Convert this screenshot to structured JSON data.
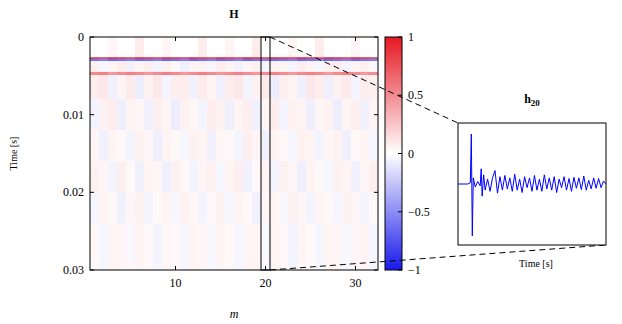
{
  "chart_data": [
    {
      "type": "heatmap",
      "title": "H",
      "x_label": "m",
      "y_label": "Time [s]",
      "x": [
        1,
        2,
        3,
        4,
        5,
        6,
        7,
        8,
        9,
        10,
        11,
        12,
        13,
        14,
        15,
        16,
        17,
        18,
        19,
        20,
        21,
        22,
        23,
        24,
        25,
        26,
        27,
        28,
        29,
        30,
        31,
        32
      ],
      "y_edges": [
        0,
        0.0026,
        0.0028,
        0.0031,
        0.0045,
        0.0049,
        0.008,
        0.012,
        0.016,
        0.02,
        0.024,
        0.03
      ],
      "cells": [
        [
          0,
          0,
          0.04,
          0,
          0,
          0.08,
          0,
          0,
          0.04,
          0,
          0,
          0,
          0.08,
          0,
          0,
          0.04,
          0,
          0,
          0.08,
          0,
          0,
          0,
          0.04,
          0,
          0,
          0.08,
          0,
          0,
          0,
          0.04,
          0,
          0
        ],
        [
          0.85,
          0.8,
          0.9,
          0.85,
          0.8,
          0.9,
          0.85,
          0.8,
          0.9,
          0.85,
          0.8,
          0.9,
          0.85,
          0.8,
          0.9,
          0.85,
          0.8,
          0.9,
          0.85,
          0.8,
          0.9,
          0.85,
          0.8,
          0.9,
          0.85,
          0.8,
          0.9,
          0.85,
          0.8,
          0.9,
          0.85,
          0.8
        ],
        [
          -0.6,
          -0.55,
          -0.65,
          -0.6,
          -0.55,
          -0.65,
          -0.6,
          -0.55,
          -0.65,
          -0.6,
          -0.55,
          -0.65,
          -0.6,
          -0.55,
          -0.65,
          -0.6,
          -0.55,
          -0.65,
          -0.6,
          -0.55,
          -0.65,
          -0.6,
          -0.55,
          -0.65,
          -0.6,
          -0.55,
          -0.65,
          -0.6,
          -0.55,
          -0.65,
          -0.6,
          -0.55
        ],
        [
          0.06,
          -0.04,
          0.05,
          0.08,
          -0.06,
          0.04,
          0.07,
          -0.05,
          0.06,
          0.03,
          -0.07,
          0.05,
          0.06,
          -0.04,
          0.08,
          0.05,
          -0.06,
          0.04,
          0.07,
          -0.05,
          0.06,
          0.04,
          -0.05,
          0.07,
          0.05,
          -0.04,
          0.06,
          0.08,
          -0.05,
          0.04,
          0.06,
          -0.03
        ],
        [
          0.5,
          0.55,
          0.45,
          0.5,
          0.55,
          0.5,
          0.45,
          0.5,
          0.55,
          0.5,
          0.45,
          0.5,
          0.55,
          0.5,
          0.45,
          0.5,
          0.55,
          0.5,
          0.45,
          0.5,
          0.55,
          0.5,
          0.45,
          0.5,
          0.55,
          0.5,
          0.45,
          0.5,
          0.55,
          0.5,
          0.45,
          0.5
        ],
        [
          0.08,
          0.1,
          -0.06,
          0.05,
          0.09,
          -0.08,
          0.06,
          0.1,
          -0.05,
          0.07,
          0.08,
          -0.06,
          0.09,
          0.05,
          -0.07,
          0.08,
          0.1,
          -0.05,
          0.06,
          0.09,
          -0.08,
          0.07,
          0.05,
          -0.06,
          0.1,
          0.08,
          -0.07,
          0.06,
          0.09,
          -0.05,
          0.08,
          0.07
        ],
        [
          -0.05,
          0.06,
          0.08,
          -0.07,
          0.05,
          0.04,
          -0.06,
          0.07,
          0.05,
          -0.08,
          0.06,
          0.04,
          -0.05,
          0.08,
          0.06,
          -0.07,
          0.05,
          0.07,
          -0.06,
          0.04,
          0.08,
          -0.05,
          0.06,
          0.05,
          -0.07,
          0.04,
          0.06,
          -0.08,
          0.05,
          0.07,
          -0.06,
          0.05
        ],
        [
          0.04,
          -0.06,
          0.05,
          0.03,
          -0.05,
          0.06,
          0.04,
          -0.07,
          0.05,
          0.03,
          -0.04,
          0.06,
          0.05,
          -0.06,
          0.04,
          0.03,
          -0.05,
          0.07,
          0.04,
          -0.06,
          0.05,
          0.03,
          -0.04,
          0.06,
          0.05,
          -0.05,
          0.04,
          0.06,
          -0.07,
          0.03,
          0.05,
          -0.04
        ],
        [
          0.06,
          0.04,
          -0.05,
          0.07,
          0.03,
          -0.06,
          0.05,
          0.04,
          -0.07,
          0.06,
          0.03,
          -0.05,
          0.04,
          0.06,
          -0.04,
          0.05,
          0.07,
          -0.06,
          0.03,
          0.05,
          -0.05,
          0.06,
          0.04,
          -0.07,
          0.05,
          0.03,
          -0.04,
          0.06,
          0.05,
          -0.06,
          0.04,
          0.07
        ],
        [
          -0.04,
          0.05,
          0.03,
          -0.06,
          0.04,
          0.06,
          -0.05,
          0.03,
          0.05,
          -0.04,
          0.06,
          0.04,
          -0.05,
          0.03,
          0.06,
          -0.04,
          0.05,
          0.03,
          -0.06,
          0.04,
          0.05,
          -0.03,
          0.06,
          0.04,
          -0.05,
          0.05,
          0.03,
          -0.04,
          0.06,
          0.04,
          -0.05,
          0.03
        ],
        [
          0.03,
          -0.04,
          0.05,
          0.04,
          -0.03,
          0.05,
          0.03,
          -0.05,
          0.04,
          0.03,
          -0.04,
          0.05,
          0.04,
          -0.03,
          0.05,
          0.03,
          -0.04,
          0.04,
          0.05,
          -0.03,
          0.04,
          0.03,
          -0.05,
          0.04,
          0.03,
          -0.04,
          0.05,
          0.04,
          -0.03,
          0.04,
          0.05,
          -0.04
        ]
      ],
      "xlim": [
        0.5,
        32.5
      ],
      "ylim": [
        0,
        0.03
      ],
      "xticks": [
        10,
        20,
        30
      ],
      "yticks": [
        0,
        0.01,
        0.02,
        0.03
      ],
      "colorbar": {
        "range": [
          -1,
          1
        ],
        "ticks": [
          {
            "value": -1,
            "label": "−1"
          },
          {
            "value": -0.5,
            "label": "−0.5"
          },
          0,
          0.5,
          1
        ]
      },
      "selected": 20
    },
    {
      "type": "line",
      "title": "h20",
      "x_label": "Time [s]",
      "x": [
        0,
        0.001,
        0.002,
        0.0025,
        0.0027,
        0.0029,
        0.0031,
        0.0035,
        0.004,
        0.0045,
        0.0047,
        0.0049,
        0.0052,
        0.0055,
        0.006,
        0.0065,
        0.007,
        0.0075,
        0.008,
        0.0085,
        0.009,
        0.0095,
        0.01,
        0.0105,
        0.011,
        0.0115,
        0.012,
        0.0125,
        0.013,
        0.0135,
        0.014,
        0.0145,
        0.015,
        0.0155,
        0.016,
        0.0165,
        0.017,
        0.0175,
        0.018,
        0.0185,
        0.019,
        0.0195,
        0.02,
        0.0205,
        0.021,
        0.0215,
        0.022,
        0.0225,
        0.023,
        0.0235,
        0.024,
        0.0245,
        0.025,
        0.0255,
        0.026,
        0.0265,
        0.027,
        0.0275,
        0.028,
        0.0285,
        0.029,
        0.0295,
        0.03
      ],
      "values": [
        0,
        0,
        0,
        0.02,
        0.82,
        -0.85,
        0.1,
        -0.05,
        0.04,
        -0.03,
        0.25,
        -0.2,
        0.15,
        -0.1,
        0.08,
        -0.12,
        0.1,
        0.22,
        -0.15,
        0.12,
        -0.1,
        0.14,
        -0.08,
        0.1,
        -0.12,
        0.16,
        -0.1,
        0.08,
        -0.14,
        0.12,
        -0.06,
        0.1,
        -0.12,
        0.14,
        -0.1,
        0.08,
        -0.12,
        0.15,
        -0.08,
        0.1,
        -0.1,
        0.12,
        -0.14,
        0.08,
        -0.06,
        0.12,
        -0.1,
        0.09,
        -0.12,
        0.11,
        -0.07,
        0.1,
        -0.09,
        0.13,
        -0.1,
        0.06,
        -0.08,
        0.1,
        -0.07,
        0.09,
        -0.06,
        0.05,
        0
      ],
      "xlim": [
        0,
        0.03
      ],
      "ylim": [
        -1,
        1
      ],
      "color": "#0000ff",
      "tick_labels": false
    }
  ]
}
